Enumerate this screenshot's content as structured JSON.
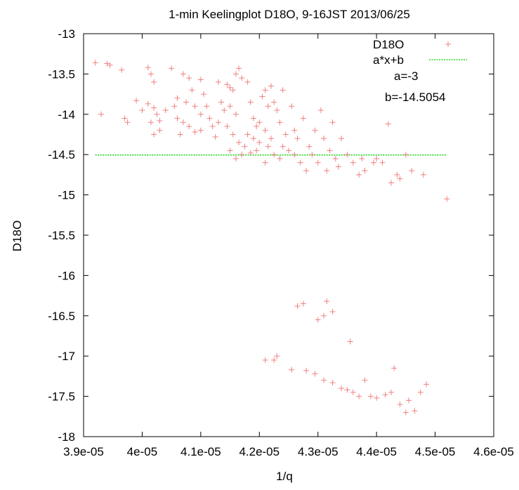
{
  "chart_data": {
    "type": "scatter",
    "title": "1-min Keelingplot D18O, 9-16JST 2013/06/25",
    "xlabel": "1/q",
    "ylabel": "D18O",
    "xlim": [
      3.9e-05,
      4.6e-05
    ],
    "ylim": [
      -18,
      -13
    ],
    "x_ticks": [
      3.9e-05,
      4e-05,
      4.1e-05,
      4.2e-05,
      4.3e-05,
      4.4e-05,
      4.5e-05,
      4.6e-05
    ],
    "x_tick_labels": [
      "3.9e-05",
      "4e-05",
      "4.1e-05",
      "4.2e-05",
      "4.3e-05",
      "4.4e-05",
      "4.5e-05",
      "4.6e-05"
    ],
    "y_ticks": [
      -13,
      -13.5,
      -14,
      -14.5,
      -15,
      -15.5,
      -16,
      -16.5,
      -17,
      -17.5,
      -18
    ],
    "y_tick_labels": [
      "-13",
      "-13.5",
      "-14",
      "-14.5",
      "-15",
      "-15.5",
      "-16",
      "-16.5",
      "-17",
      "-17.5",
      "-18"
    ],
    "grid": false,
    "legend_position": "top-right",
    "series": [
      {
        "name": "D18O",
        "kind": "points",
        "marker": "plus",
        "color": "#f08080",
        "points": [
          [
            3.92e-05,
            -13.36
          ],
          [
            3.94e-05,
            -13.37
          ],
          [
            3.945e-05,
            -13.39
          ],
          [
            3.965e-05,
            -13.45
          ],
          [
            3.93e-05,
            -14.0
          ],
          [
            3.97e-05,
            -14.05
          ],
          [
            3.975e-05,
            -14.1
          ],
          [
            3.99e-05,
            -13.83
          ],
          [
            4e-05,
            -13.95
          ],
          [
            4.01e-05,
            -13.42
          ],
          [
            4.015e-05,
            -13.5
          ],
          [
            4.02e-05,
            -13.6
          ],
          [
            4.01e-05,
            -13.87
          ],
          [
            4.02e-05,
            -13.92
          ],
          [
            4.025e-05,
            -14.0
          ],
          [
            4.015e-05,
            -14.1
          ],
          [
            4.03e-05,
            -14.08
          ],
          [
            4.02e-05,
            -14.25
          ],
          [
            4.03e-05,
            -14.2
          ],
          [
            4.04e-05,
            -13.95
          ],
          [
            4.05e-05,
            -13.43
          ],
          [
            4.06e-05,
            -13.8
          ],
          [
            4.055e-05,
            -13.9
          ],
          [
            4.07e-05,
            -13.5
          ],
          [
            4.08e-05,
            -13.55
          ],
          [
            4.085e-05,
            -13.7
          ],
          [
            4.075e-05,
            -13.85
          ],
          [
            4.09e-05,
            -13.9
          ],
          [
            4.06e-05,
            -14.05
          ],
          [
            4.07e-05,
            -14.1
          ],
          [
            4.08e-05,
            -14.15
          ],
          [
            4.065e-05,
            -14.25
          ],
          [
            4.09e-05,
            -14.22
          ],
          [
            4.1e-05,
            -13.57
          ],
          [
            4.105e-05,
            -13.75
          ],
          [
            4.11e-05,
            -13.9
          ],
          [
            4.1e-05,
            -14.0
          ],
          [
            4.115e-05,
            -14.05
          ],
          [
            4.12e-05,
            -14.15
          ],
          [
            4.1e-05,
            -14.2
          ],
          [
            4.125e-05,
            -14.28
          ],
          [
            4.13e-05,
            -13.6
          ],
          [
            4.135e-05,
            -13.85
          ],
          [
            4.14e-05,
            -13.95
          ],
          [
            4.13e-05,
            -14.1
          ],
          [
            4.145e-05,
            -13.63
          ],
          [
            4.15e-05,
            -13.67
          ],
          [
            4.155e-05,
            -13.7
          ],
          [
            4.16e-05,
            -13.5
          ],
          [
            4.165e-05,
            -13.43
          ],
          [
            4.17e-05,
            -13.55
          ],
          [
            4.15e-05,
            -13.9
          ],
          [
            4.16e-05,
            -14.0
          ],
          [
            4.145e-05,
            -14.15
          ],
          [
            4.155e-05,
            -14.25
          ],
          [
            4.165e-05,
            -14.35
          ],
          [
            4.15e-05,
            -14.45
          ],
          [
            4.17e-05,
            -14.5
          ],
          [
            4.16e-05,
            -14.55
          ],
          [
            4.175e-05,
            -14.4
          ],
          [
            4.18e-05,
            -13.6
          ],
          [
            4.185e-05,
            -13.85
          ],
          [
            4.19e-05,
            -14.05
          ],
          [
            4.195e-05,
            -14.15
          ],
          [
            4.18e-05,
            -14.25
          ],
          [
            4.19e-05,
            -14.3
          ],
          [
            4.2e-05,
            -14.35
          ],
          [
            4.195e-05,
            -14.45
          ],
          [
            4.185e-05,
            -14.48
          ],
          [
            4.2e-05,
            -14.1
          ],
          [
            4.205e-05,
            -13.78
          ],
          [
            4.21e-05,
            -13.7
          ],
          [
            4.215e-05,
            -13.9
          ],
          [
            4.22e-05,
            -13.65
          ],
          [
            4.225e-05,
            -13.85
          ],
          [
            4.21e-05,
            -14.2
          ],
          [
            4.22e-05,
            -14.3
          ],
          [
            4.215e-05,
            -14.4
          ],
          [
            4.225e-05,
            -14.5
          ],
          [
            4.21e-05,
            -14.6
          ],
          [
            4.23e-05,
            -13.95
          ],
          [
            4.235e-05,
            -14.1
          ],
          [
            4.24e-05,
            -13.7
          ],
          [
            4.245e-05,
            -14.25
          ],
          [
            4.24e-05,
            -14.4
          ],
          [
            4.235e-05,
            -14.55
          ],
          [
            4.25e-05,
            -14.45
          ],
          [
            4.255e-05,
            -13.9
          ],
          [
            4.26e-05,
            -14.2
          ],
          [
            4.265e-05,
            -14.3
          ],
          [
            4.26e-05,
            -14.5
          ],
          [
            4.27e-05,
            -14.6
          ],
          [
            4.275e-05,
            -14.05
          ],
          [
            4.28e-05,
            -14.7
          ],
          [
            4.285e-05,
            -14.4
          ],
          [
            4.29e-05,
            -14.5
          ],
          [
            4.295e-05,
            -14.2
          ],
          [
            4.3e-05,
            -14.6
          ],
          [
            4.305e-05,
            -13.95
          ],
          [
            4.31e-05,
            -14.3
          ],
          [
            4.315e-05,
            -14.7
          ],
          [
            4.32e-05,
            -14.45
          ],
          [
            4.325e-05,
            -14.1
          ],
          [
            4.33e-05,
            -14.55
          ],
          [
            4.335e-05,
            -14.65
          ],
          [
            4.34e-05,
            -14.3
          ],
          [
            4.35e-05,
            -14.5
          ],
          [
            4.36e-05,
            -14.6
          ],
          [
            4.37e-05,
            -14.75
          ],
          [
            4.375e-05,
            -14.55
          ],
          [
            4.38e-05,
            -14.7
          ],
          [
            4.395e-05,
            -14.6
          ],
          [
            4.4e-05,
            -14.55
          ],
          [
            4.41e-05,
            -14.6
          ],
          [
            4.42e-05,
            -14.12
          ],
          [
            4.425e-05,
            -14.85
          ],
          [
            4.435e-05,
            -14.75
          ],
          [
            4.44e-05,
            -14.8
          ],
          [
            4.45e-05,
            -14.5
          ],
          [
            4.46e-05,
            -14.7
          ],
          [
            4.48e-05,
            -14.75
          ],
          [
            4.52e-05,
            -15.05
          ],
          [
            4.265e-05,
            -16.38
          ],
          [
            4.275e-05,
            -16.35
          ],
          [
            4.3e-05,
            -16.55
          ],
          [
            4.31e-05,
            -16.5
          ],
          [
            4.315e-05,
            -16.32
          ],
          [
            4.325e-05,
            -16.45
          ],
          [
            4.355e-05,
            -16.82
          ],
          [
            4.21e-05,
            -17.05
          ],
          [
            4.225e-05,
            -17.05
          ],
          [
            4.23e-05,
            -17.0
          ],
          [
            4.255e-05,
            -17.17
          ],
          [
            4.28e-05,
            -17.18
          ],
          [
            4.295e-05,
            -17.22
          ],
          [
            4.31e-05,
            -17.3
          ],
          [
            4.325e-05,
            -17.33
          ],
          [
            4.34e-05,
            -17.4
          ],
          [
            4.35e-05,
            -17.42
          ],
          [
            4.36e-05,
            -17.45
          ],
          [
            4.37e-05,
            -17.5
          ],
          [
            4.38e-05,
            -17.3
          ],
          [
            4.39e-05,
            -17.5
          ],
          [
            4.4e-05,
            -17.52
          ],
          [
            4.415e-05,
            -17.48
          ],
          [
            4.425e-05,
            -17.45
          ],
          [
            4.43e-05,
            -17.15
          ],
          [
            4.44e-05,
            -17.6
          ],
          [
            4.45e-05,
            -17.7
          ],
          [
            4.455e-05,
            -17.55
          ],
          [
            4.465e-05,
            -17.68
          ],
          [
            4.475e-05,
            -17.45
          ],
          [
            4.485e-05,
            -17.35
          ]
        ]
      },
      {
        "name": "a*x+b",
        "kind": "line",
        "color": "#00cc00",
        "dash": true,
        "x_range": [
          3.92e-05,
          4.52e-05
        ],
        "y_value": -14.5054
      }
    ],
    "annotations": [
      "a=-3",
      "b=-14.5054"
    ]
  }
}
